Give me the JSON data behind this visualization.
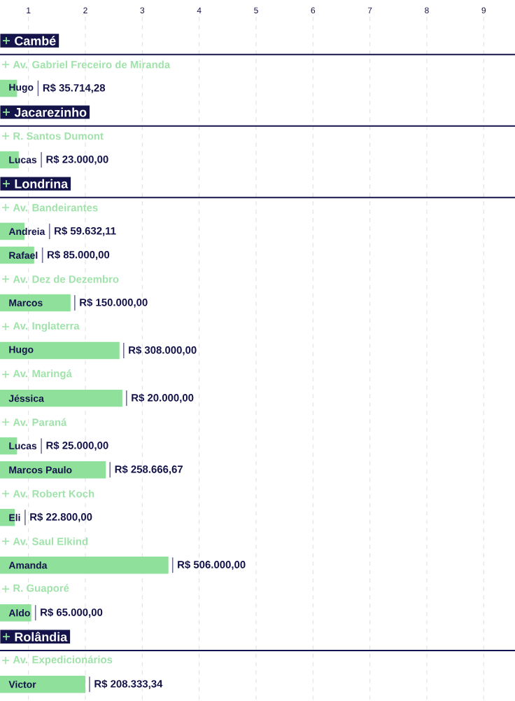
{
  "chart_data": {
    "type": "bar",
    "orientation": "horizontal",
    "categories": [
      "Hugo",
      "Lucas",
      "Andreia",
      "Rafael",
      "Marcos",
      "Hugo",
      "Jéssica",
      "Lucas",
      "Marcos Paulo",
      "Eli",
      "Amanda",
      "Aldo",
      "Victor"
    ],
    "values": [
      0.8,
      0.83,
      0.93,
      1.1,
      1.74,
      2.6,
      2.65,
      0.8,
      2.36,
      0.76,
      3.46,
      1.05,
      2.0
    ],
    "value_labels": [
      "R$ 35.714,28",
      "R$ 23.000,00",
      "R$ 59.632,11",
      "R$ 85.000,00",
      "R$ 150.000,00",
      "R$ 308.000,00",
      "R$ 20.000,00",
      "R$ 25.000,00",
      "R$ 258.666,67",
      "R$ 22.800,00",
      "R$ 506.000,00",
      "R$ 65.000,00",
      "R$ 208.333,34"
    ],
    "color": "#8ee09b",
    "xlim": [
      0.5,
      9.55
    ],
    "xticks": [
      1,
      2,
      3,
      4,
      5,
      6,
      7,
      8,
      9
    ],
    "grid": "x",
    "annotations": [
      "Cambé",
      "Av. Gabriel Freceiro de Miranda",
      "Jacarezinho",
      "R. Santos Dumont",
      "Londrina",
      "Av. Bandeirantes",
      "Av. Dez de Dezembro",
      "Av. Inglaterra",
      "Av. Maringá",
      "Av. Paraná",
      "Av. Robert Koch",
      "Av. Saul Elkind",
      "R. Guaporé",
      "Rolândia",
      "Av. Expedicionários"
    ]
  }
}
